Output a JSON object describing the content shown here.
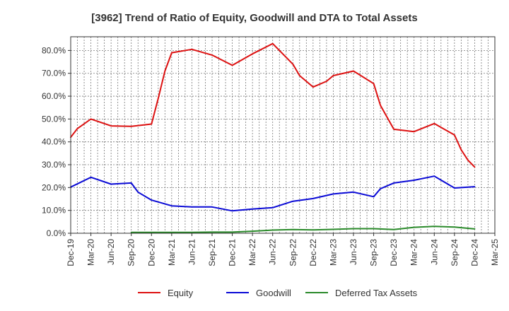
{
  "chart_data": {
    "type": "line",
    "title": "[3962]  Trend of Ratio of Equity, Goodwill and DTA to Total Assets",
    "xlabel": "",
    "ylabel": "",
    "ylim": [
      0,
      86
    ],
    "grid": true,
    "legend_position": "bottom",
    "x_ticks": [
      "Dec-19",
      "Mar-20",
      "Jun-20",
      "Sep-20",
      "Dec-20",
      "Mar-21",
      "Jun-21",
      "Sep-21",
      "Dec-21",
      "Mar-22",
      "Jun-22",
      "Sep-22",
      "Dec-22",
      "Mar-23",
      "Jun-23",
      "Sep-23",
      "Dec-23",
      "Mar-24",
      "Jun-24",
      "Sep-24",
      "Dec-24",
      "Mar-25"
    ],
    "y_ticks": [
      {
        "value": 0,
        "label": "0.0%"
      },
      {
        "value": 10,
        "label": "10.0%"
      },
      {
        "value": 20,
        "label": "20.0%"
      },
      {
        "value": 30,
        "label": "30.0%"
      },
      {
        "value": 40,
        "label": "40.0%"
      },
      {
        "value": 50,
        "label": "50.0%"
      },
      {
        "value": 60,
        "label": "60.0%"
      },
      {
        "value": 70,
        "label": "70.0%"
      },
      {
        "value": 80,
        "label": "80.0%"
      }
    ],
    "series": [
      {
        "name": "Equity",
        "color": "#dd1111",
        "points": [
          [
            0,
            42
          ],
          [
            1,
            45.8
          ],
          [
            3,
            50
          ],
          [
            6,
            47
          ],
          [
            9,
            46.8
          ],
          [
            12,
            47.8
          ],
          [
            13,
            59
          ],
          [
            14,
            71
          ],
          [
            15,
            79
          ],
          [
            18,
            80.5
          ],
          [
            21,
            78
          ],
          [
            24,
            73.5
          ],
          [
            27,
            78.5
          ],
          [
            30,
            83
          ],
          [
            33,
            74
          ],
          [
            34,
            69
          ],
          [
            36,
            64
          ],
          [
            38,
            66.5
          ],
          [
            39,
            69
          ],
          [
            42,
            71
          ],
          [
            45,
            65.5
          ],
          [
            46,
            56
          ],
          [
            48,
            45.5
          ],
          [
            51,
            44.5
          ],
          [
            54,
            48
          ],
          [
            57,
            43
          ],
          [
            58,
            36.5
          ],
          [
            59,
            32
          ],
          [
            60,
            29
          ]
        ]
      },
      {
        "name": "Goodwill",
        "color": "#0a0ad6",
        "points": [
          [
            0,
            20.2
          ],
          [
            3,
            24.5
          ],
          [
            6,
            21.5
          ],
          [
            9,
            22
          ],
          [
            10,
            18
          ],
          [
            12,
            14.5
          ],
          [
            15,
            12
          ],
          [
            18,
            11.5
          ],
          [
            21,
            11.5
          ],
          [
            24,
            9.8
          ],
          [
            27,
            10.6
          ],
          [
            30,
            11.2
          ],
          [
            33,
            14
          ],
          [
            36,
            15.2
          ],
          [
            39,
            17.2
          ],
          [
            42,
            18
          ],
          [
            45,
            16
          ],
          [
            46,
            19.5
          ],
          [
            48,
            22
          ],
          [
            51,
            23.2
          ],
          [
            54,
            25
          ],
          [
            57,
            19.8
          ],
          [
            60,
            20.4
          ]
        ]
      },
      {
        "name": "Deferred Tax Assets",
        "color": "#2a8a2a",
        "points": [
          [
            9,
            0.4
          ],
          [
            12,
            0.4
          ],
          [
            15,
            0.4
          ],
          [
            18,
            0.4
          ],
          [
            21,
            0.5
          ],
          [
            24,
            0.5
          ],
          [
            27,
            0.9
          ],
          [
            30,
            1.4
          ],
          [
            33,
            1.6
          ],
          [
            36,
            1.5
          ],
          [
            39,
            1.7
          ],
          [
            42,
            2.0
          ],
          [
            45,
            2.0
          ],
          [
            48,
            1.6
          ],
          [
            51,
            2.6
          ],
          [
            54,
            3.0
          ],
          [
            57,
            2.7
          ],
          [
            60,
            1.9
          ]
        ]
      }
    ]
  }
}
